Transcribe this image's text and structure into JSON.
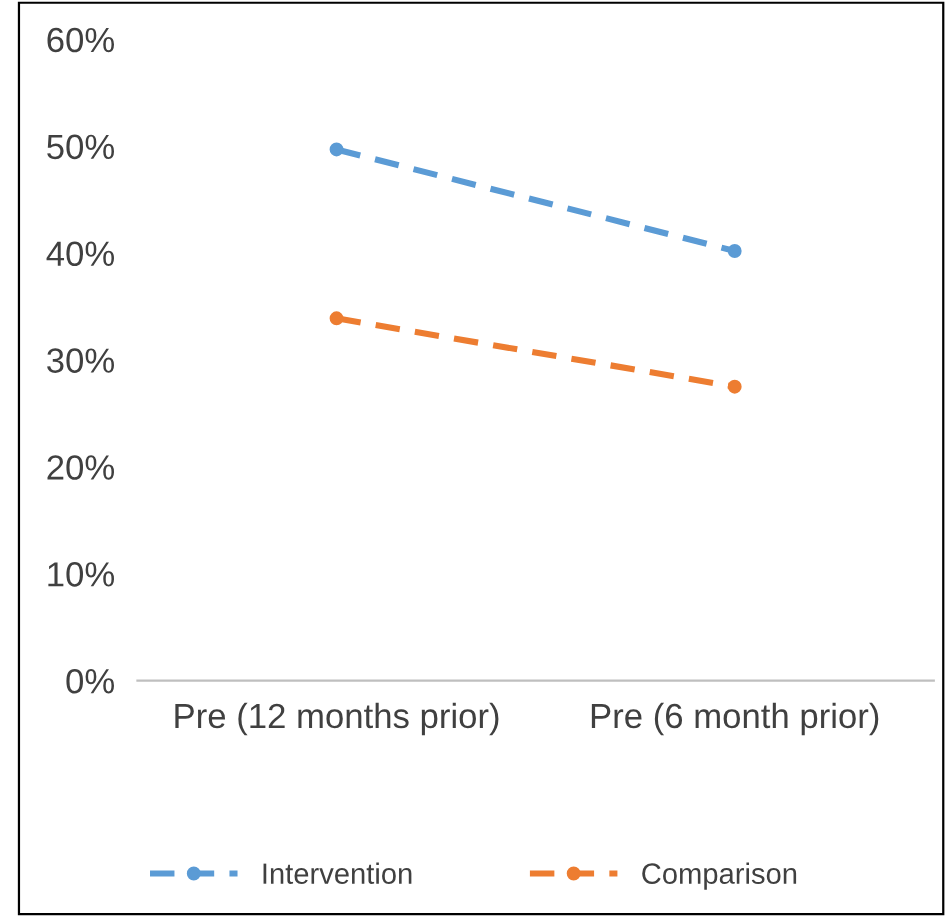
{
  "chart_data": {
    "type": "line",
    "categories": [
      "Pre (12 months prior)",
      "Pre (6 month prior)"
    ],
    "series": [
      {
        "name": "Intervention",
        "color": "#5b9bd5",
        "values": [
          49.7,
          40.2
        ]
      },
      {
        "name": "Comparison",
        "color": "#ed7d31",
        "values": [
          33.9,
          27.5
        ]
      }
    ],
    "ylim": [
      0,
      60
    ],
    "yticks": [
      {
        "value": 0,
        "label": "0%"
      },
      {
        "value": 10,
        "label": "10%"
      },
      {
        "value": 20,
        "label": "20%"
      },
      {
        "value": 30,
        "label": "30%"
      },
      {
        "value": 40,
        "label": "40%"
      },
      {
        "value": 50,
        "label": "50%"
      },
      {
        "value": 60,
        "label": "60%"
      }
    ],
    "grid": false,
    "legend": "bottom",
    "marker": "circle",
    "line_style": "dashed"
  }
}
